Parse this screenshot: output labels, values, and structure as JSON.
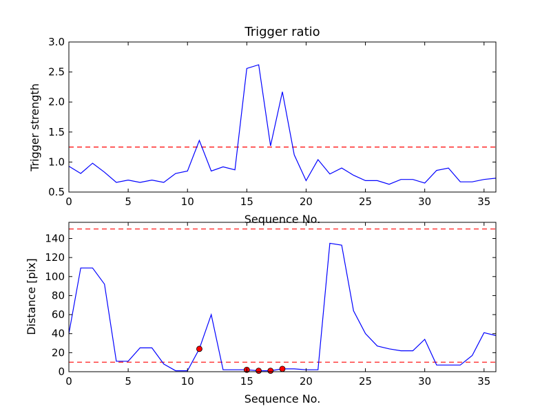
{
  "colors": {
    "series": "#0000ff",
    "threshold": "#ff0000",
    "marker_fill": "#ff0000",
    "marker_edge": "#000000",
    "frame": "#000000",
    "background": "#ffffff"
  },
  "chart_data": [
    {
      "type": "line",
      "title": "Trigger ratio",
      "xlabel": "Sequence No.",
      "ylabel": "Trigger strength",
      "xlim": [
        0,
        36
      ],
      "ylim": [
        0.5,
        3.0
      ],
      "xticks": [
        0,
        5,
        10,
        15,
        20,
        25,
        30,
        35
      ],
      "xtick_labels": [
        "0",
        "5",
        "10",
        "15",
        "20",
        "25",
        "30",
        "35"
      ],
      "yticks": [
        0.5,
        1.0,
        1.5,
        2.0,
        2.5,
        3.0
      ],
      "ytick_labels": [
        "0.5",
        "1.0",
        "1.5",
        "2.0",
        "2.5",
        "3.0"
      ],
      "grid": false,
      "series": [
        {
          "x": [
            0,
            1,
            2,
            3,
            4,
            5,
            6,
            7,
            8,
            9,
            10,
            11,
            12,
            13,
            14,
            15,
            16,
            17,
            18,
            19,
            20,
            21,
            22,
            23,
            24,
            25,
            26,
            27,
            28,
            29,
            30,
            31,
            32,
            33,
            34,
            35,
            36
          ],
          "values": [
            0.93,
            0.81,
            0.98,
            0.83,
            0.66,
            0.7,
            0.66,
            0.7,
            0.66,
            0.81,
            0.85,
            1.36,
            0.85,
            0.92,
            0.87,
            2.56,
            2.62,
            1.27,
            2.17,
            1.12,
            0.69,
            1.04,
            0.8,
            0.9,
            0.78,
            0.69,
            0.69,
            0.63,
            0.71,
            0.71,
            0.65,
            0.86,
            0.9,
            0.67,
            0.67,
            0.71,
            0.73
          ]
        }
      ],
      "hlines": [
        1.25
      ]
    },
    {
      "type": "line",
      "title": "",
      "xlabel": "Sequence No.",
      "ylabel": "Distance [pix]",
      "xlim": [
        0,
        36
      ],
      "ylim": [
        0,
        157
      ],
      "xticks": [
        0,
        5,
        10,
        15,
        20,
        25,
        30,
        35
      ],
      "xtick_labels": [
        "0",
        "5",
        "10",
        "15",
        "20",
        "25",
        "30",
        "35"
      ],
      "yticks": [
        0,
        20,
        40,
        60,
        80,
        100,
        120,
        140
      ],
      "ytick_labels": [
        "0",
        "20",
        "40",
        "60",
        "80",
        "100",
        "120",
        "140"
      ],
      "grid": false,
      "series": [
        {
          "x": [
            0,
            1,
            2,
            3,
            4,
            5,
            6,
            7,
            8,
            9,
            10,
            11,
            12,
            13,
            14,
            15,
            16,
            17,
            18,
            19,
            20,
            21,
            22,
            23,
            24,
            25,
            26,
            27,
            28,
            29,
            30,
            31,
            32,
            33,
            34,
            35,
            36
          ],
          "values": [
            40,
            109,
            109,
            92,
            11,
            11,
            25,
            25,
            8,
            1,
            1,
            24,
            60,
            2,
            2,
            2,
            1,
            1,
            3,
            3,
            2,
            2,
            135,
            133,
            64,
            40,
            27,
            24,
            22,
            22,
            34,
            7,
            7,
            7,
            17,
            41,
            38
          ]
        }
      ],
      "markers": {
        "x": [
          11,
          15,
          16,
          17,
          18
        ],
        "y": [
          24,
          2,
          1,
          1,
          3
        ]
      },
      "hlines": [
        10,
        150
      ]
    }
  ]
}
